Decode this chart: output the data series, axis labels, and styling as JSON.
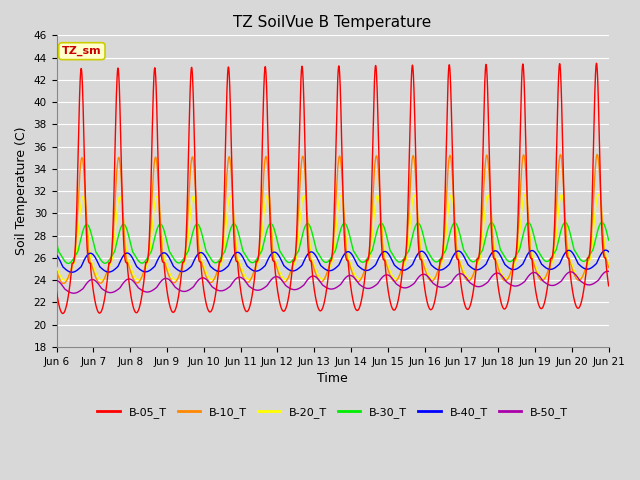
{
  "title": "TZ SoilVue B Temperature",
  "ylabel": "Soil Temperature (C)",
  "xlabel": "Time",
  "ylim": [
    18,
    46
  ],
  "yticks": [
    18,
    20,
    22,
    24,
    26,
    28,
    30,
    32,
    34,
    36,
    38,
    40,
    42,
    44,
    46
  ],
  "x_labels": [
    "Jun 6",
    "Jun 7",
    "Jun 8",
    "Jun 9",
    "Jun 10",
    "Jun 11",
    "Jun 12",
    "Jun 13",
    "Jun 14",
    "Jun 15",
    "Jun 16",
    "Jun 17",
    "Jun 18",
    "Jun 19",
    "Jun 20",
    "Jun 21"
  ],
  "annotation_text": "TZ_sm",
  "annotation_color": "#cc0000",
  "annotation_bg": "#ffffcc",
  "annotation_border": "#cccc00",
  "series_colors": {
    "B-05_T": "#ff0000",
    "B-10_T": "#ff8800",
    "B-20_T": "#ffff00",
    "B-30_T": "#00ee00",
    "B-40_T": "#0000ff",
    "B-50_T": "#aa00aa"
  },
  "legend_labels": [
    "B-05_T",
    "B-10_T",
    "B-20_T",
    "B-30_T",
    "B-40_T",
    "B-50_T"
  ],
  "background_color": "#d8d8d8",
  "plot_bg_color": "#d8d8d8",
  "grid_color": "#ffffff",
  "title_fontsize": 11,
  "axis_label_fontsize": 9,
  "tick_fontsize": 7.5,
  "num_days": 15,
  "points_per_day": 288
}
